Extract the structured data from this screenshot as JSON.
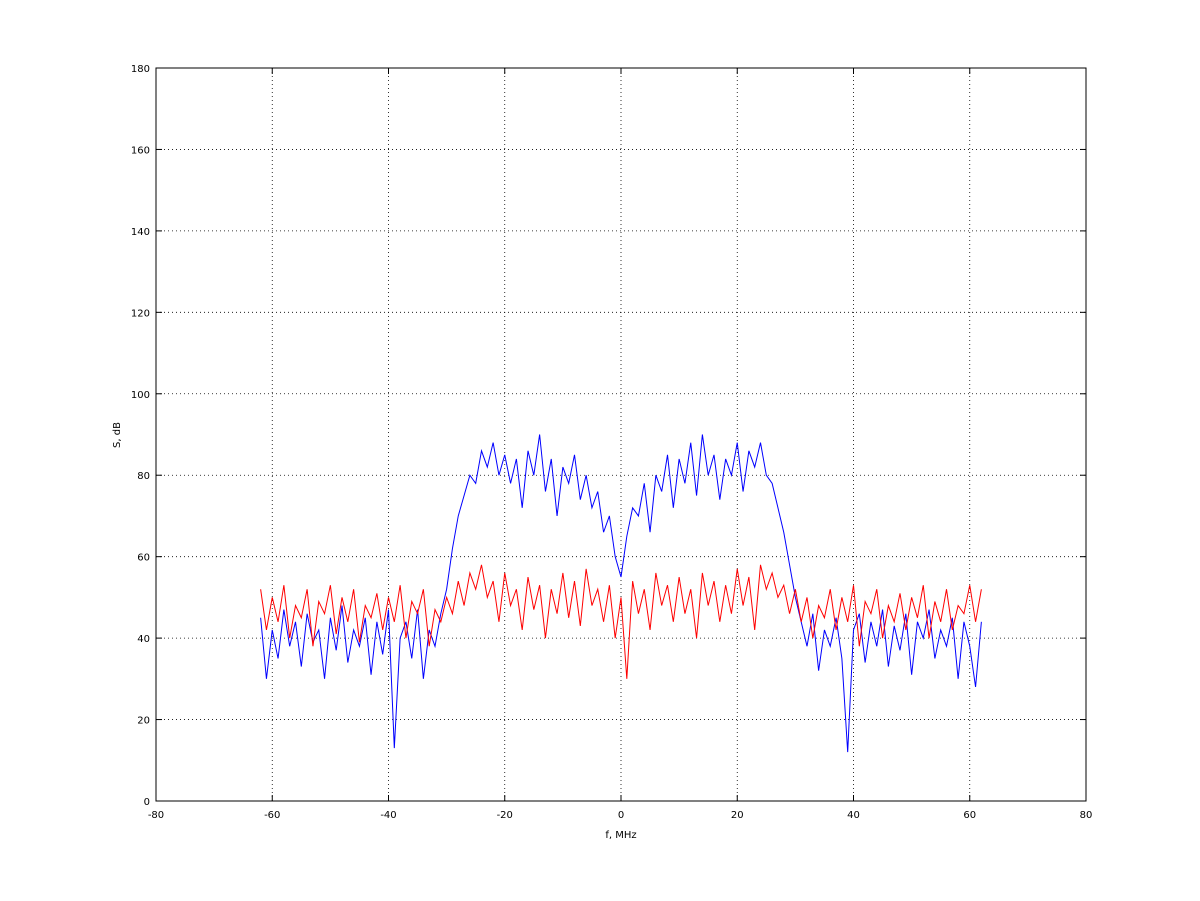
{
  "chart_data": {
    "type": "line",
    "xlabel": "f, MHz",
    "ylabel": "S, dB",
    "xlim": [
      -80,
      80
    ],
    "ylim": [
      0,
      180
    ],
    "xticks": [
      -80,
      -60,
      -40,
      -20,
      0,
      20,
      40,
      60,
      80
    ],
    "yticks": [
      0,
      20,
      40,
      60,
      80,
      100,
      120,
      140,
      160,
      180
    ],
    "grid": true,
    "x": [
      -62,
      -61,
      -60,
      -59,
      -58,
      -57,
      -56,
      -55,
      -54,
      -53,
      -52,
      -51,
      -50,
      -49,
      -48,
      -47,
      -46,
      -45,
      -44,
      -43,
      -42,
      -41,
      -40,
      -39,
      -38,
      -37,
      -36,
      -35,
      -34,
      -33,
      -32,
      -31,
      -30,
      -29,
      -28,
      -27,
      -26,
      -25,
      -24,
      -23,
      -22,
      -21,
      -20,
      -19,
      -18,
      -17,
      -16,
      -15,
      -14,
      -13,
      -12,
      -11,
      -10,
      -9,
      -8,
      -7,
      -6,
      -5,
      -4,
      -3,
      -2,
      -1,
      0,
      1,
      2,
      3,
      4,
      5,
      6,
      7,
      8,
      9,
      10,
      11,
      12,
      13,
      14,
      15,
      16,
      17,
      18,
      19,
      20,
      21,
      22,
      23,
      24,
      25,
      26,
      27,
      28,
      29,
      30,
      31,
      32,
      33,
      34,
      35,
      36,
      37,
      38,
      39,
      40,
      41,
      42,
      43,
      44,
      45,
      46,
      47,
      48,
      49,
      50,
      51,
      52,
      53,
      54,
      55,
      56,
      57,
      58,
      59,
      60,
      61,
      62
    ],
    "series": [
      {
        "name": "blue",
        "color": "#0000ff",
        "values": [
          45,
          30,
          42,
          35,
          47,
          38,
          44,
          33,
          46,
          39,
          42,
          30,
          45,
          37,
          48,
          34,
          42,
          38,
          45,
          31,
          44,
          36,
          47,
          13,
          40,
          44,
          35,
          47,
          30,
          42,
          38,
          46,
          52,
          62,
          70,
          75,
          80,
          78,
          86,
          82,
          88,
          80,
          85,
          78,
          84,
          72,
          86,
          80,
          90,
          76,
          84,
          70,
          82,
          78,
          85,
          74,
          80,
          72,
          76,
          66,
          70,
          60,
          55,
          65,
          72,
          70,
          78,
          66,
          80,
          76,
          85,
          72,
          84,
          78,
          88,
          75,
          90,
          80,
          85,
          74,
          84,
          80,
          88,
          76,
          86,
          82,
          88,
          80,
          78,
          72,
          66,
          58,
          50,
          44,
          38,
          46,
          32,
          42,
          38,
          45,
          35,
          12,
          42,
          46,
          34,
          44,
          38,
          47,
          33,
          43,
          37,
          46,
          31,
          44,
          40,
          47,
          35,
          42,
          38,
          45,
          30,
          44,
          38,
          28,
          44
        ]
      },
      {
        "name": "red",
        "color": "#ff0000",
        "values": [
          52,
          42,
          50,
          44,
          53,
          40,
          48,
          45,
          52,
          38,
          49,
          46,
          53,
          41,
          50,
          44,
          52,
          39,
          48,
          45,
          51,
          42,
          50,
          44,
          53,
          40,
          49,
          46,
          52,
          38,
          47,
          44,
          50,
          46,
          54,
          48,
          56,
          52,
          58,
          50,
          54,
          44,
          56,
          48,
          52,
          42,
          55,
          47,
          53,
          40,
          52,
          46,
          56,
          45,
          54,
          43,
          57,
          48,
          52,
          44,
          53,
          40,
          50,
          30,
          54,
          46,
          52,
          42,
          56,
          48,
          53,
          44,
          55,
          46,
          52,
          40,
          56,
          48,
          54,
          44,
          53,
          46,
          57,
          48,
          55,
          42,
          58,
          52,
          56,
          50,
          53,
          46,
          52,
          44,
          50,
          40,
          48,
          45,
          52,
          42,
          50,
          44,
          53,
          38,
          49,
          46,
          52,
          40,
          48,
          44,
          51,
          42,
          50,
          45,
          53,
          40,
          49,
          44,
          52,
          42,
          48,
          46,
          53,
          44,
          52
        ]
      }
    ]
  }
}
